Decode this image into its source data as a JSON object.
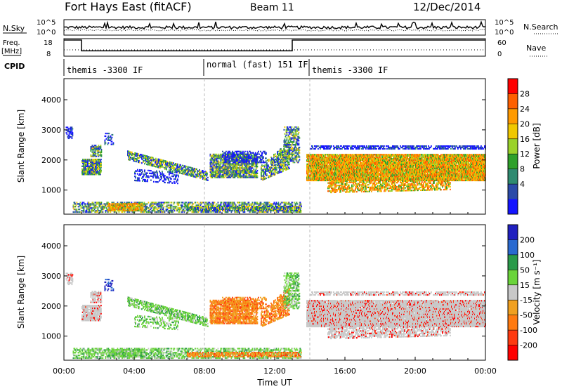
{
  "header": {
    "station": "Fort Hays East (fitACF)",
    "beam": "Beam 11",
    "date": "12/Dec/2014"
  },
  "chart_data": [
    {
      "type": "line",
      "panel": "noise",
      "left_label": "N.Sky",
      "right_label": "N.Search",
      "left_ticks": [
        "10^5",
        "10^0"
      ],
      "right_ticks": [
        "10^5",
        "10^0"
      ]
    },
    {
      "type": "line",
      "panel": "frequency",
      "left_label_line1": "Freq.",
      "left_label_line2": "[MHz]",
      "right_label": "Nave",
      "left_ticks": [
        "18",
        "8"
      ],
      "right_ticks": [
        "60",
        "0"
      ],
      "freq_steps": [
        {
          "x0": 0.0,
          "x1": 1.0,
          "value": 18
        },
        {
          "x0": 1.0,
          "x1": 13.0,
          "value": 11
        },
        {
          "x0": 13.0,
          "x1": 24.0,
          "value": 18
        }
      ]
    },
    {
      "type": "table",
      "panel": "cpid",
      "label": "CPID",
      "segments": [
        {
          "start": 0.0,
          "text": "themis -3300 IF"
        },
        {
          "start": 8.0,
          "text": "normal (fast) 151 IF"
        },
        {
          "start": 14.0,
          "text": "themis -3300 IF"
        }
      ]
    },
    {
      "type": "heatmap",
      "panel": "power",
      "ylabel": "Slant Range [km]",
      "x_range": [
        0,
        24
      ],
      "ylim": [
        200,
        4700
      ],
      "y_ticks": [
        1000,
        2000,
        3000,
        4000
      ],
      "colorbar_label": "Power [dB]",
      "colorbar_ticks": [
        "28",
        "24",
        "20",
        "16",
        "12",
        "8",
        "4"
      ],
      "colorbar_colors": [
        "#ff0000",
        "#ff6000",
        "#ff9a00",
        "#f0c800",
        "#9ad22a",
        "#2ea02a",
        "#2e8a70",
        "#2a4aa8",
        "#1414ff"
      ]
    },
    {
      "type": "heatmap",
      "panel": "velocity",
      "ylabel": "Slant Range [km]",
      "xlabel": "Time UT",
      "x_range": [
        0,
        24
      ],
      "ylim": [
        200,
        4700
      ],
      "y_ticks": [
        1000,
        2000,
        3000,
        4000
      ],
      "x_ticks": [
        "00:00",
        "04:00",
        "08:00",
        "12:00",
        "16:00",
        "20:00",
        "00:00"
      ],
      "colorbar_label": "Velocity [m s⁻¹]",
      "colorbar_ticks": [
        "200",
        "100",
        "50",
        "15",
        "-15",
        "-50",
        "-100",
        "-200"
      ],
      "colorbar_colors": [
        "#2020c0",
        "#2a6ad0",
        "#2a9a4a",
        "#6ad43a",
        "#c8c8c8",
        "#f0a020",
        "#ff7a10",
        "#ff3a10",
        "#ff0000"
      ]
    }
  ]
}
